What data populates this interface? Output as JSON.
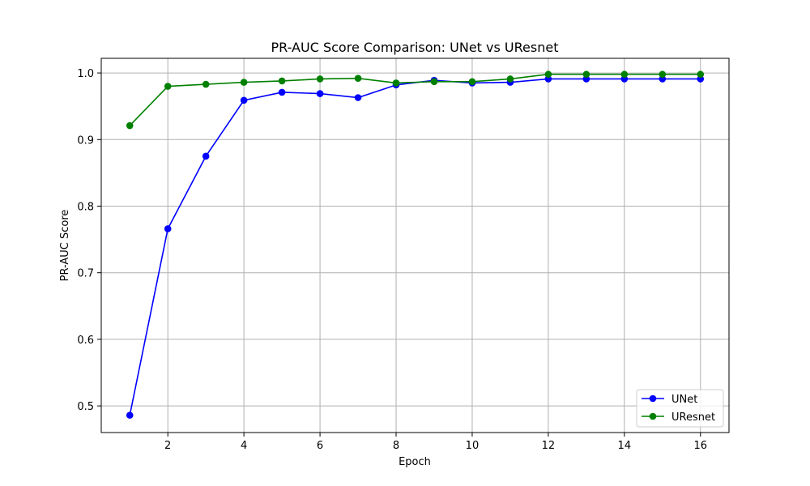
{
  "chart_data": {
    "type": "line",
    "title": "PR-AUC Score Comparison: UNet vs UResnet",
    "xlabel": "Epoch",
    "ylabel": "PR-AUC Score",
    "xlim": [
      0.25,
      16.75
    ],
    "ylim": [
      0.46,
      1.022
    ],
    "xticks": [
      2,
      4,
      6,
      8,
      10,
      12,
      14,
      16
    ],
    "yticks": [
      0.5,
      0.6,
      0.7,
      0.8,
      0.9,
      1.0
    ],
    "ytick_labels": [
      "0.5",
      "0.6",
      "0.7",
      "0.8",
      "0.9",
      "1.0"
    ],
    "grid": true,
    "legend_position": "lower-right",
    "x": [
      1,
      2,
      3,
      4,
      5,
      6,
      7,
      8,
      9,
      10,
      11,
      12,
      13,
      14,
      15,
      16
    ],
    "series": [
      {
        "name": "UNet",
        "color": "#0000ff",
        "marker": "circle",
        "values": [
          0.486,
          0.766,
          0.875,
          0.959,
          0.971,
          0.969,
          0.963,
          0.982,
          0.989,
          0.985,
          0.986,
          0.991,
          0.991,
          0.991,
          0.991,
          0.991
        ]
      },
      {
        "name": "UResnet",
        "color": "#008000",
        "marker": "circle",
        "values": [
          0.921,
          0.98,
          0.983,
          0.986,
          0.988,
          0.991,
          0.992,
          0.985,
          0.987,
          0.987,
          0.991,
          0.998,
          0.998,
          0.998,
          0.998,
          0.998
        ]
      }
    ]
  }
}
